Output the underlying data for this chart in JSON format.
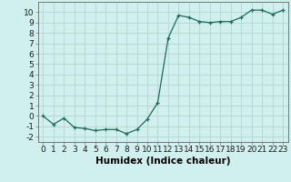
{
  "x": [
    0,
    1,
    2,
    3,
    4,
    5,
    6,
    7,
    8,
    9,
    10,
    11,
    12,
    13,
    14,
    15,
    16,
    17,
    18,
    19,
    20,
    21,
    22,
    23
  ],
  "y": [
    0.0,
    -0.8,
    -0.2,
    -1.1,
    -1.2,
    -1.4,
    -1.3,
    -1.3,
    -1.7,
    -1.3,
    -0.3,
    1.3,
    7.5,
    9.7,
    9.5,
    9.1,
    9.0,
    9.1,
    9.1,
    9.5,
    10.2,
    10.2,
    9.8,
    10.2
  ],
  "line_color": "#1a6b5a",
  "marker": "+",
  "bg_color": "#cff0ee",
  "grid_color": "#b8d4d0",
  "xlabel": "Humidex (Indice chaleur)",
  "xlim": [
    -0.5,
    23.5
  ],
  "ylim": [
    -2.5,
    11.0
  ],
  "yticks": [
    -2,
    -1,
    0,
    1,
    2,
    3,
    4,
    5,
    6,
    7,
    8,
    9,
    10
  ],
  "xticks": [
    0,
    1,
    2,
    3,
    4,
    5,
    6,
    7,
    8,
    9,
    10,
    11,
    12,
    13,
    14,
    15,
    16,
    17,
    18,
    19,
    20,
    21,
    22,
    23
  ],
  "fontsize": 6.5,
  "xlabel_fontsize": 7.5
}
